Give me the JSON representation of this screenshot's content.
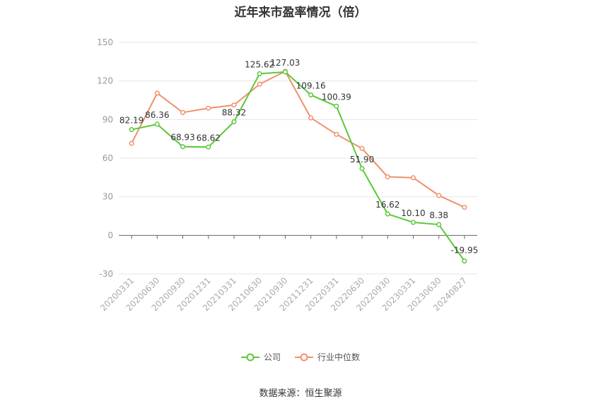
{
  "chart_data": {
    "type": "line",
    "title": "近年来市盈率情况（倍）",
    "categories": [
      "20200331",
      "20200630",
      "20200930",
      "20201231",
      "20210331",
      "20210630",
      "20210930",
      "20211231",
      "20220331",
      "20220630",
      "20220930",
      "20230331",
      "20230630",
      "20240827"
    ],
    "ylim": [
      -30,
      150
    ],
    "yticks": [
      -30,
      0,
      30,
      60,
      90,
      120,
      150
    ],
    "grid": true,
    "legend_position": "bottom",
    "series": [
      {
        "name": "公司",
        "color": "#5ac83a",
        "values": [
          82.19,
          86.36,
          68.93,
          68.62,
          88.32,
          125.62,
          127.03,
          109.16,
          100.39,
          51.9,
          16.62,
          10.1,
          8.38,
          -19.95
        ],
        "labels": [
          "82.19",
          "86.36",
          "68.93",
          "68.62",
          "88.32",
          "125.62",
          "127.03",
          "109.16",
          "100.39",
          "51.90",
          "16.62",
          "10.10",
          "8.38",
          "-19.95"
        ]
      },
      {
        "name": "行业中位数",
        "color": "#f0906a",
        "values": [
          71.5,
          110.5,
          95.5,
          98.8,
          101.3,
          117.5,
          127.5,
          91.3,
          78.5,
          67.5,
          45.5,
          44.8,
          31.0,
          21.8
        ]
      }
    ]
  },
  "source": "数据来源：恒生聚源"
}
